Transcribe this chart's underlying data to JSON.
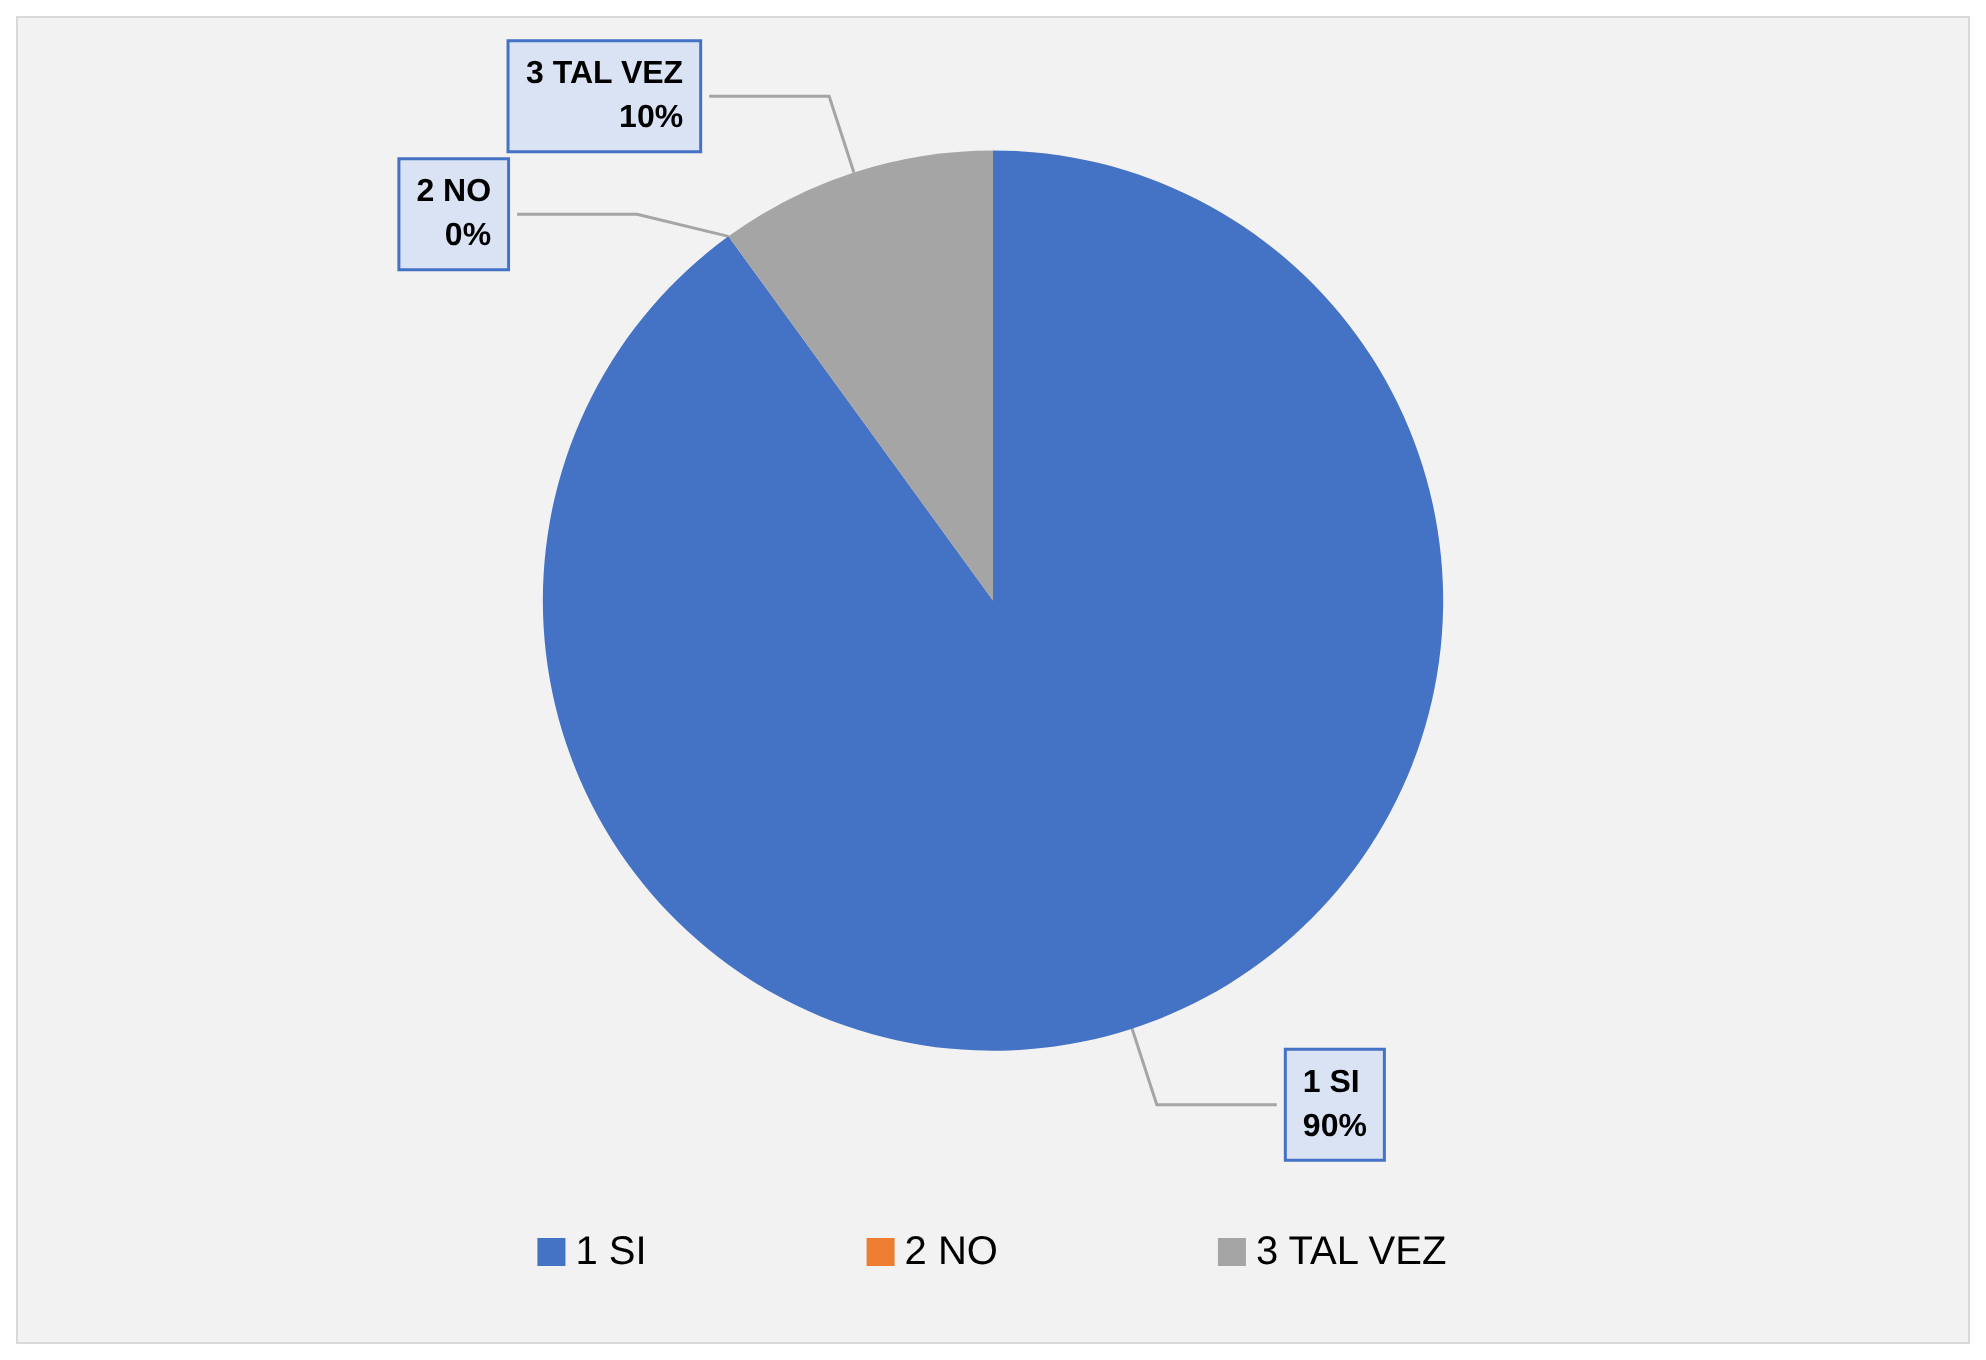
{
  "chart_data": {
    "type": "pie",
    "categories": [
      "1 SI",
      "2 NO",
      "3 TAL VEZ"
    ],
    "values": [
      90,
      0,
      10
    ],
    "value_labels": [
      "90%",
      "0%",
      "10%"
    ],
    "colors": [
      "#4472c4",
      "#ed7d31",
      "#a5a5a5"
    ],
    "legend": "bottom"
  }
}
